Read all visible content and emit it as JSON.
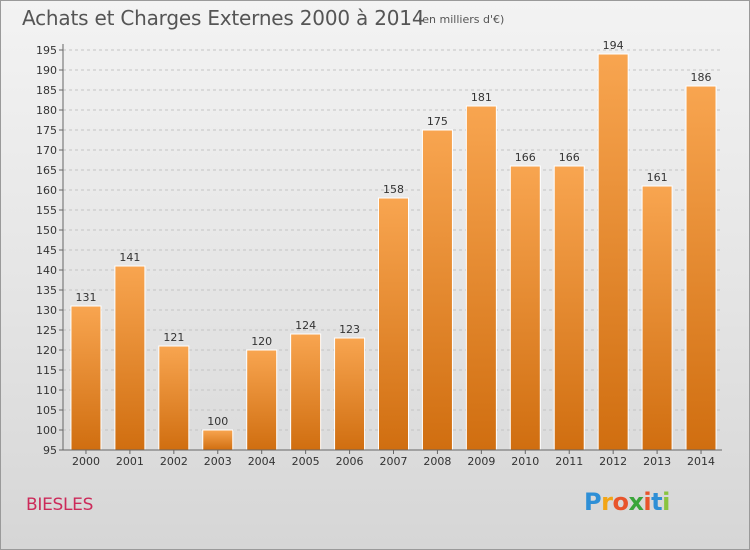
{
  "header": {
    "title": "Achats et Charges Externes 2000 à 2014",
    "subtitle": "(en milliers d'€)"
  },
  "footer": {
    "place": "BIESLES",
    "logo": {
      "letters": [
        "P",
        "r",
        "o",
        "x",
        "i",
        "t",
        "i"
      ],
      "colors": [
        "#2e8fd6",
        "#f2a516",
        "#e8542b",
        "#3aa53a",
        "#e8542b",
        "#2e8fd6",
        "#8ac43f"
      ]
    }
  },
  "colors": {
    "bar_top": "#f8a550",
    "bar_bottom": "#d06e10",
    "grid": "#c4c4c4"
  },
  "chart_data": {
    "type": "bar",
    "title": "Achats et Charges Externes 2000 à 2014",
    "subtitle": "(en milliers d'€)",
    "xlabel": "",
    "ylabel": "",
    "categories": [
      "2000",
      "2001",
      "2002",
      "2003",
      "2004",
      "2005",
      "2006",
      "2007",
      "2008",
      "2009",
      "2010",
      "2011",
      "2012",
      "2013",
      "2014"
    ],
    "values": [
      131,
      141,
      121,
      100,
      120,
      124,
      123,
      158,
      175,
      181,
      166,
      166,
      194,
      161,
      186
    ],
    "ylim": [
      95,
      195
    ],
    "yticks": [
      95,
      100,
      105,
      110,
      115,
      120,
      125,
      130,
      135,
      140,
      145,
      150,
      155,
      160,
      165,
      170,
      175,
      180,
      185,
      190,
      195
    ],
    "grid": true,
    "data_labels": true
  }
}
